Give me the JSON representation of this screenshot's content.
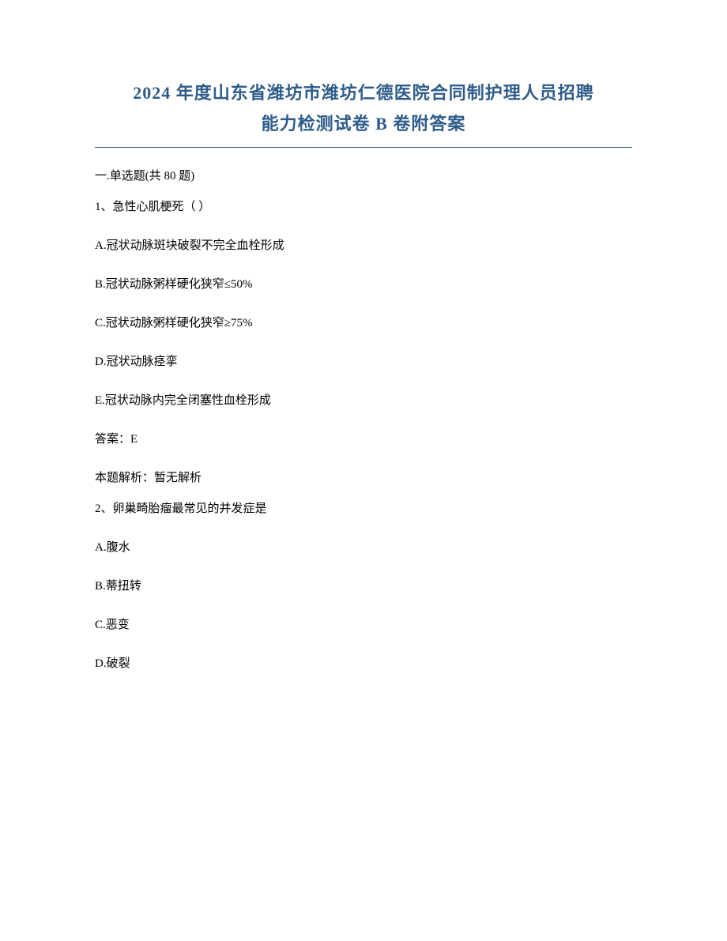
{
  "title": {
    "line1": "2024 年度山东省潍坊市潍坊仁德医院合同制护理人员招聘",
    "line2": "能力检测试卷 B 卷附答案",
    "color": "#2e5c8a",
    "fontsize": 22,
    "underline_color": "#2e5c8a"
  },
  "section": {
    "header": "一.单选题(共 80 题)"
  },
  "questions": [
    {
      "number": "1、",
      "text": "急性心肌梗死（ ）",
      "options": [
        "A.冠状动脉斑块破裂不完全血栓形成",
        "B.冠状动脉粥样硬化狭窄≤50%",
        "C.冠状动脉粥样硬化狭窄≥75%",
        "D.冠状动脉痉挛",
        "E.冠状动脉内完全闭塞性血栓形成"
      ],
      "answer_label": "答案：",
      "answer_value": "E",
      "explanation_label": "本题解析：",
      "explanation_value": "暂无解析"
    },
    {
      "number": "2、",
      "text": "卵巢畸胎瘤最常见的并发症是",
      "options": [
        "A.腹水",
        "B.蒂扭转",
        "C.恶变",
        "D.破裂"
      ]
    }
  ],
  "styling": {
    "body_width": 920,
    "body_height": 1191,
    "background_color": "#ffffff",
    "text_color": "#000000",
    "body_fontsize": 15,
    "padding_top": 100,
    "padding_side": 120,
    "line_spacing": 28
  }
}
